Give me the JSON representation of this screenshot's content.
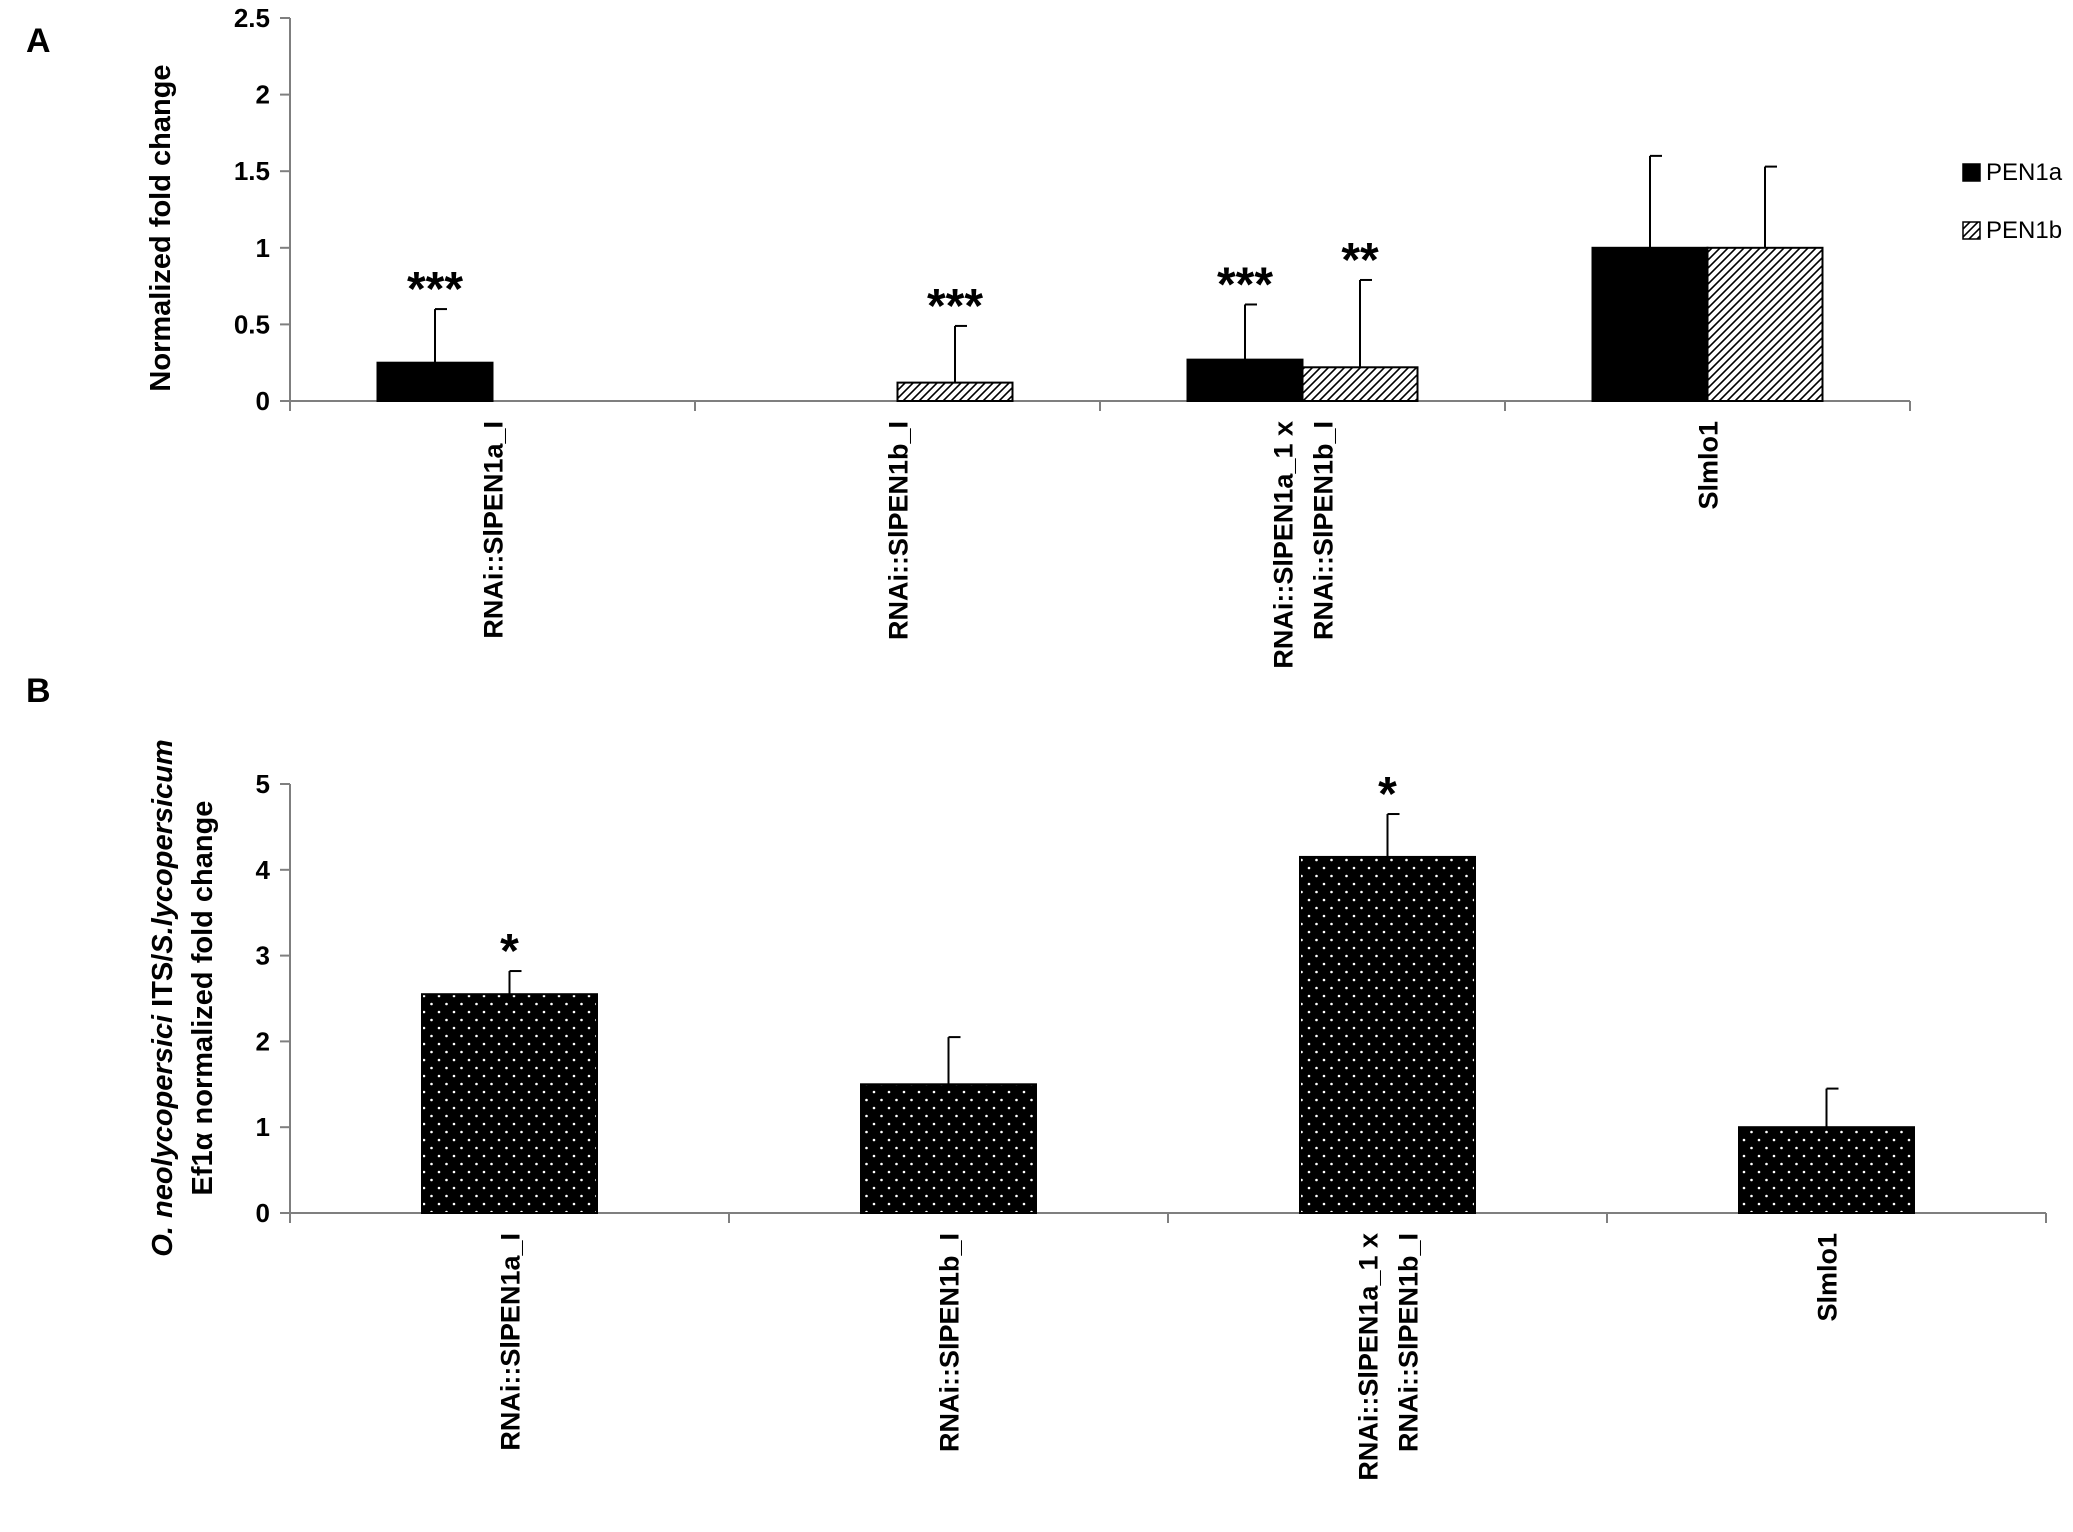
{
  "panels": [
    {
      "letter": "A"
    },
    {
      "letter": "B"
    }
  ],
  "chart_data": [
    {
      "type": "bar",
      "ylabel": "Normalized fold change",
      "ylim": [
        0,
        2.5
      ],
      "yticks": [
        "0",
        "0.5",
        "1",
        "1.5",
        "2",
        "2.5"
      ],
      "categories": [
        [
          "RNAi::SlPEN1a_I"
        ],
        [
          "RNAi::SlPEN1b_I"
        ],
        [
          "RNAi::SlPEN1a_1 x",
          "RNAi::SlPEN1b_I"
        ],
        [
          "Slmlo1"
        ]
      ],
      "legend_position": "right",
      "series": [
        {
          "name": "PEN1a",
          "fill": "solid",
          "color": "#000000",
          "values": [
            0.25,
            null,
            0.27,
            1.0
          ],
          "errors": [
            0.35,
            null,
            0.36,
            0.6
          ],
          "significance": [
            "***",
            "",
            "***",
            ""
          ]
        },
        {
          "name": "PEN1b",
          "fill": "diagonal-hatch",
          "color": "#000000",
          "values": [
            null,
            0.12,
            0.22,
            1.0
          ],
          "errors": [
            null,
            0.37,
            0.57,
            0.53
          ],
          "significance": [
            "",
            "***",
            "**",
            ""
          ]
        }
      ]
    },
    {
      "type": "bar",
      "ylabel_lines": [
        [
          {
            "text": "O. neolycopersici",
            "italic": true
          },
          {
            "text": " ITS/",
            "italic": false
          },
          {
            "text": "S.lycopersicum",
            "italic": true
          }
        ],
        [
          {
            "text": "Ef1α normalized fold change",
            "italic": false
          }
        ]
      ],
      "ylim": [
        0,
        5
      ],
      "yticks": [
        "0",
        "1",
        "2",
        "3",
        "4",
        "5"
      ],
      "categories": [
        [
          "RNAi::SlPEN1a_I"
        ],
        [
          "RNAi::SlPEN1b_I"
        ],
        [
          "RNAi::SlPEN1a_1 x",
          "RNAi::SlPEN1b_I"
        ],
        [
          "Slmlo1"
        ]
      ],
      "series": [
        {
          "fill": "dotted",
          "color": "#000000",
          "values": [
            2.55,
            1.5,
            4.15,
            1.0
          ],
          "errors": [
            0.27,
            0.55,
            0.5,
            0.45
          ],
          "significance": [
            "*",
            "",
            "*",
            ""
          ]
        }
      ]
    }
  ]
}
